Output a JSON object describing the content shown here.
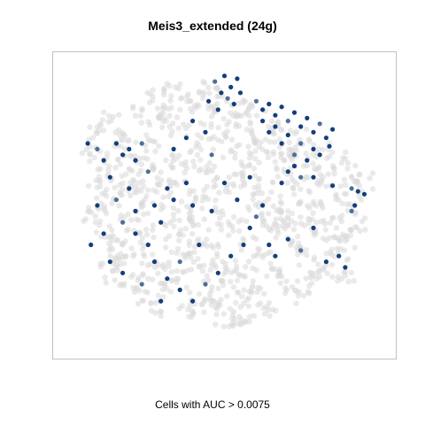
{
  "chart_data": {
    "type": "scatter",
    "title": "Meis3_extended (24g)",
    "xlabel": "Cells with AUC > 0.0075",
    "ylabel": "",
    "xlim": [
      0,
      100
    ],
    "ylim": [
      0,
      100
    ],
    "grid": false,
    "legend": "none",
    "colors": {
      "background_cells": "#d9d9d9",
      "high_auc": "#123f7a",
      "mid_auc": "#4f6f99"
    },
    "series": [
      {
        "role": "all cells",
        "points": [
          [
            10,
            76
          ],
          [
            14,
            80
          ],
          [
            18,
            74
          ],
          [
            8,
            68
          ],
          [
            12,
            62
          ],
          [
            16,
            66
          ],
          [
            20,
            70
          ],
          [
            24,
            64
          ],
          [
            28,
            72
          ],
          [
            22,
            58
          ],
          [
            10,
            56
          ],
          [
            14,
            50
          ],
          [
            18,
            54
          ],
          [
            8,
            46
          ],
          [
            12,
            42
          ],
          [
            16,
            38
          ],
          [
            20,
            44
          ],
          [
            24,
            48
          ],
          [
            28,
            52
          ],
          [
            32,
            56
          ],
          [
            30,
            62
          ],
          [
            34,
            66
          ],
          [
            26,
            40
          ],
          [
            22,
            34
          ],
          [
            18,
            30
          ],
          [
            14,
            26
          ],
          [
            20,
            22
          ],
          [
            24,
            18
          ],
          [
            28,
            14
          ],
          [
            32,
            20
          ],
          [
            36,
            24
          ],
          [
            30,
            30
          ],
          [
            34,
            36
          ],
          [
            38,
            42
          ],
          [
            40,
            30
          ],
          [
            44,
            26
          ],
          [
            42,
            18
          ],
          [
            38,
            12
          ],
          [
            46,
            14
          ],
          [
            50,
            10
          ],
          [
            54,
            8
          ],
          [
            58,
            12
          ],
          [
            56,
            18
          ],
          [
            52,
            24
          ],
          [
            48,
            30
          ],
          [
            46,
            38
          ],
          [
            42,
            46
          ],
          [
            38,
            52
          ],
          [
            36,
            60
          ],
          [
            40,
            66
          ],
          [
            44,
            72
          ],
          [
            48,
            76
          ],
          [
            52,
            80
          ],
          [
            56,
            84
          ],
          [
            60,
            82
          ],
          [
            64,
            78
          ],
          [
            62,
            70
          ],
          [
            58,
            66
          ],
          [
            54,
            62
          ],
          [
            50,
            58
          ],
          [
            46,
            54
          ],
          [
            50,
            46
          ],
          [
            54,
            42
          ],
          [
            58,
            36
          ],
          [
            62,
            30
          ],
          [
            66,
            26
          ],
          [
            70,
            22
          ],
          [
            74,
            18
          ],
          [
            78,
            24
          ],
          [
            82,
            28
          ],
          [
            86,
            32
          ],
          [
            88,
            38
          ],
          [
            84,
            44
          ],
          [
            80,
            48
          ],
          [
            76,
            52
          ],
          [
            72,
            56
          ],
          [
            68,
            60
          ],
          [
            66,
            66
          ],
          [
            70,
            70
          ],
          [
            74,
            66
          ],
          [
            78,
            62
          ],
          [
            82,
            58
          ],
          [
            86,
            54
          ],
          [
            90,
            50
          ],
          [
            92,
            44
          ],
          [
            94,
            58
          ],
          [
            90,
            62
          ],
          [
            86,
            66
          ],
          [
            60,
            48
          ],
          [
            64,
            44
          ],
          [
            68,
            40
          ],
          [
            72,
            36
          ],
          [
            76,
            32
          ],
          [
            70,
            46
          ],
          [
            66,
            50
          ],
          [
            62,
            54
          ],
          [
            58,
            58
          ],
          [
            32,
            84
          ],
          [
            28,
            88
          ],
          [
            34,
            90
          ],
          [
            38,
            86
          ],
          [
            42,
            88
          ],
          [
            46,
            92
          ],
          [
            30,
            80
          ],
          [
            36,
            78
          ],
          [
            24,
            82
          ],
          [
            44,
            82
          ],
          [
            50,
            86
          ],
          [
            20,
            60
          ],
          [
            26,
            26
          ],
          [
            16,
            34
          ],
          [
            34,
            46
          ],
          [
            40,
            36
          ],
          [
            48,
            20
          ],
          [
            60,
            20
          ],
          [
            64,
            14
          ],
          [
            56,
            28
          ],
          [
            44,
            62
          ],
          [
            52,
            70
          ],
          [
            60,
            74
          ],
          [
            68,
            74
          ],
          [
            74,
            74
          ],
          [
            80,
            70
          ],
          [
            84,
            36
          ],
          [
            88,
            26
          ],
          [
            78,
            42
          ],
          [
            74,
            44
          ]
        ]
      },
      {
        "role": "cells with AUC > 0.0075",
        "points": [
          [
            47,
            94
          ],
          [
            50,
            96
          ],
          [
            52,
            92
          ],
          [
            54,
            95
          ],
          [
            49,
            90
          ],
          [
            51,
            88
          ],
          [
            53,
            86
          ],
          [
            48,
            84
          ],
          [
            55,
            90
          ],
          [
            45,
            87
          ],
          [
            60,
            87
          ],
          [
            62,
            84
          ],
          [
            64,
            86
          ],
          [
            66,
            82
          ],
          [
            68,
            85
          ],
          [
            70,
            80
          ],
          [
            72,
            83
          ],
          [
            74,
            78
          ],
          [
            76,
            81
          ],
          [
            78,
            76
          ],
          [
            80,
            79
          ],
          [
            82,
            74
          ],
          [
            84,
            77
          ],
          [
            66,
            78
          ],
          [
            70,
            75
          ],
          [
            74,
            72
          ],
          [
            78,
            70
          ],
          [
            62,
            80
          ],
          [
            64,
            76
          ],
          [
            68,
            72
          ],
          [
            72,
            68
          ],
          [
            76,
            66
          ],
          [
            80,
            68
          ],
          [
            83,
            71
          ],
          [
            70,
            62
          ],
          [
            74,
            60
          ],
          [
            68,
            58
          ],
          [
            72,
            64
          ],
          [
            78,
            60
          ],
          [
            84,
            57
          ],
          [
            90,
            56
          ],
          [
            92,
            55
          ],
          [
            94,
            54
          ],
          [
            91,
            50
          ],
          [
            7,
            72
          ],
          [
            10,
            70
          ],
          [
            16,
            72
          ],
          [
            18,
            68
          ],
          [
            20,
            70
          ],
          [
            22,
            66
          ],
          [
            24,
            72
          ],
          [
            12,
            66
          ],
          [
            14,
            60
          ],
          [
            20,
            56
          ],
          [
            10,
            50
          ],
          [
            16,
            52
          ],
          [
            22,
            48
          ],
          [
            28,
            50
          ],
          [
            32,
            56
          ],
          [
            34,
            52
          ],
          [
            26,
            62
          ],
          [
            34,
            70
          ],
          [
            38,
            74
          ],
          [
            40,
            80
          ],
          [
            44,
            76
          ],
          [
            46,
            68
          ],
          [
            38,
            58
          ],
          [
            30,
            44
          ],
          [
            26,
            36
          ],
          [
            22,
            40
          ],
          [
            18,
            44
          ],
          [
            12,
            40
          ],
          [
            8,
            36
          ],
          [
            14,
            30
          ],
          [
            18,
            26
          ],
          [
            24,
            22
          ],
          [
            30,
            16
          ],
          [
            32,
            24
          ],
          [
            36,
            20
          ],
          [
            40,
            16
          ],
          [
            44,
            22
          ],
          [
            48,
            26
          ],
          [
            52,
            32
          ],
          [
            56,
            36
          ],
          [
            58,
            42
          ],
          [
            60,
            46
          ],
          [
            62,
            50
          ],
          [
            64,
            36
          ],
          [
            66,
            32
          ],
          [
            70,
            38
          ],
          [
            74,
            34
          ],
          [
            78,
            42
          ],
          [
            82,
            30
          ],
          [
            86,
            32
          ],
          [
            88,
            28
          ],
          [
            90,
            48
          ],
          [
            54,
            52
          ],
          [
            50,
            58
          ],
          [
            46,
            48
          ],
          [
            42,
            36
          ],
          [
            36,
            30
          ],
          [
            58,
            60
          ],
          [
            40,
            50
          ],
          [
            28,
            30
          ]
        ]
      }
    ]
  },
  "caption": "Cells with AUC > 0.0075"
}
